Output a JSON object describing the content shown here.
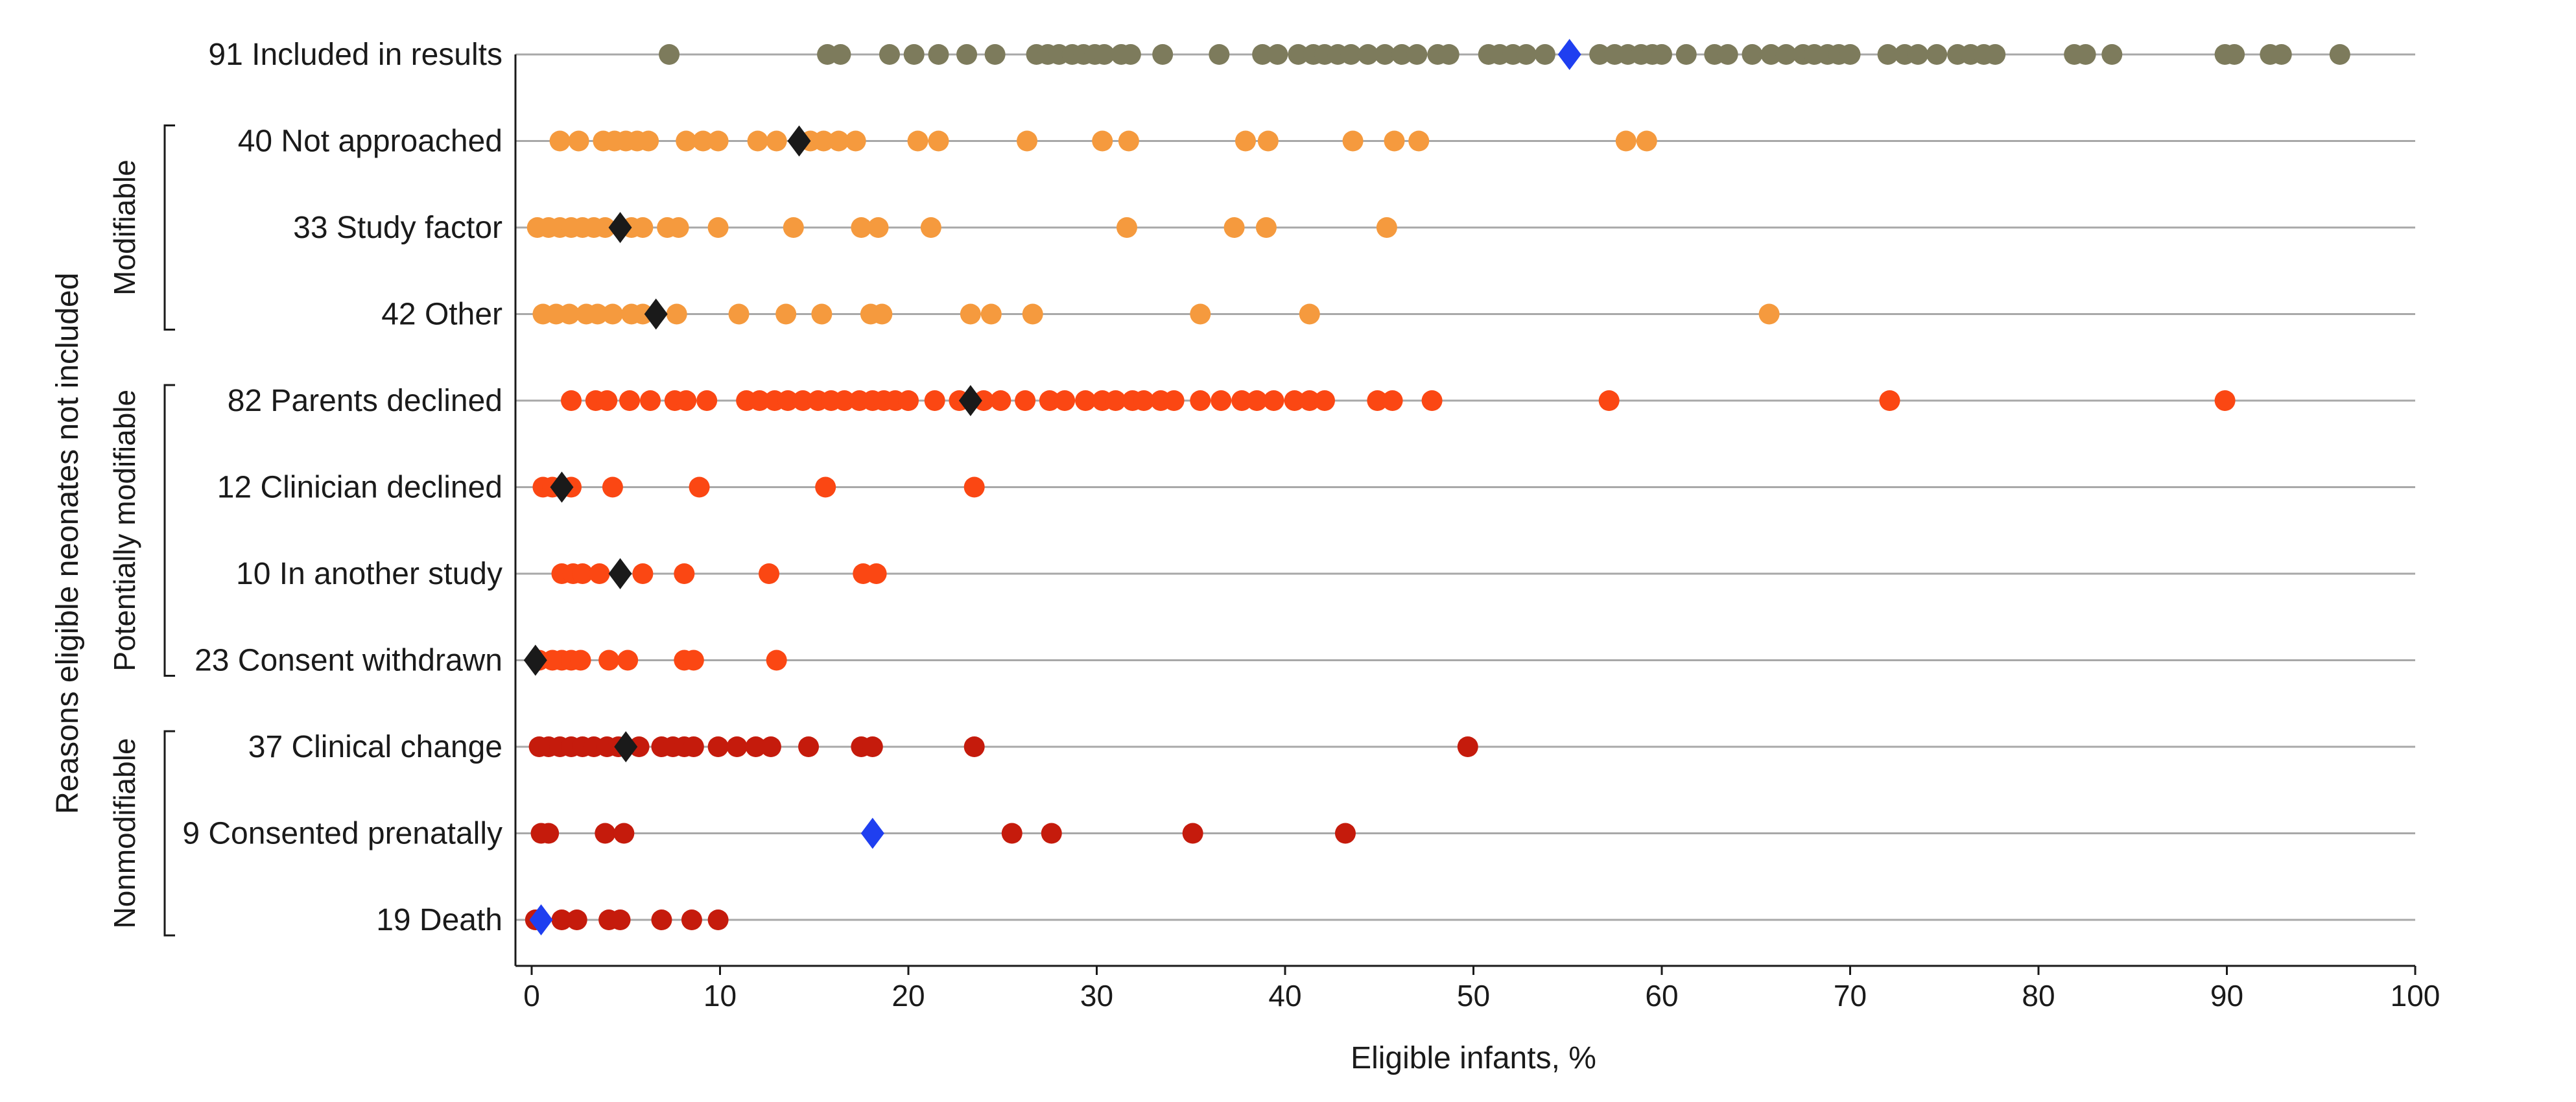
{
  "chart_data": {
    "type": "scatter",
    "xlabel": "Eligible infants, %",
    "ylabel": "Reasons eligible neonates not included",
    "xlim": [
      0,
      100
    ],
    "x_ticks": [
      0,
      10,
      20,
      30,
      40,
      50,
      60,
      70,
      80,
      90,
      100
    ],
    "grid": true,
    "groups": [
      {
        "label": "Modifiable",
        "rows": [
          1,
          2,
          3
        ]
      },
      {
        "label": "Potentially modifiable",
        "rows": [
          4,
          5,
          6,
          7
        ]
      },
      {
        "label": "Nonmodifiable",
        "rows": [
          8,
          9,
          10
        ]
      }
    ],
    "rows": [
      {
        "label": "91 Included in results",
        "color": "#7d7b5c",
        "median": 55.1,
        "median_color": "#1f3ff0",
        "points": [
          7.3,
          15.7,
          16.4,
          19,
          20.3,
          21.6,
          23.1,
          24.6,
          26.8,
          27.4,
          28,
          28.7,
          29.3,
          29.9,
          30.4,
          31.3,
          31.8,
          33.5,
          36.5,
          38.8,
          39.6,
          40.7,
          41.5,
          42.1,
          42.8,
          43.5,
          44.4,
          45.3,
          46.2,
          47,
          48.1,
          48.7,
          50.8,
          51.4,
          52.1,
          52.8,
          53.8,
          56.7,
          57.5,
          58.2,
          58.9,
          59.5,
          60,
          61.3,
          62.8,
          63.5,
          64.8,
          65.8,
          66.6,
          67.5,
          68.1,
          68.8,
          69.4,
          70,
          72,
          72.9,
          73.6,
          74.6,
          75.7,
          76.4,
          77.1,
          77.7,
          81.9,
          82.5,
          83.9,
          89.9,
          90.4,
          92.3,
          92.9,
          96
        ],
        "marker_size": "small"
      },
      {
        "label": "40 Not approached",
        "color": "#f59a3e",
        "median": 14.2,
        "median_color": "#1a1a1a",
        "points": [
          1.5,
          2.5,
          3.8,
          4.4,
          5,
          5.6,
          6.2,
          8.2,
          9.1,
          9.9,
          12,
          13,
          14.8,
          15.5,
          16.3,
          17.2,
          20.5,
          21.6,
          26.3,
          30.3,
          31.7,
          37.9,
          39.1,
          43.6,
          45.8,
          47.1,
          58.1,
          59.2
        ],
        "marker_size": "small"
      },
      {
        "label": "33 Study factor",
        "color": "#f59a3e",
        "median": 4.7,
        "median_color": "#1a1a1a",
        "points": [
          0.3,
          0.9,
          1.5,
          2.1,
          2.7,
          3.3,
          3.9,
          5.3,
          5.9,
          7.2,
          7.8,
          9.9,
          13.9,
          17.5,
          18.4,
          21.2,
          31.6,
          37.3,
          39,
          45.4
        ],
        "marker_size": "small"
      },
      {
        "label": "42 Other",
        "color": "#f59a3e",
        "median": 6.6,
        "median_color": "#1a1a1a",
        "points": [
          0.6,
          1.3,
          2,
          2.9,
          3.5,
          4.3,
          5.3,
          5.9,
          7.7,
          11,
          13.5,
          15.4,
          18,
          18.6,
          23.3,
          24.4,
          26.6,
          35.5,
          41.3,
          65.7
        ],
        "marker_size": "small"
      },
      {
        "label": "82 Parents declined",
        "color": "#fb4713",
        "median": 23.3,
        "median_color": "#1a1a1a",
        "points": [
          2.1,
          3.4,
          4,
          5.2,
          6.3,
          7.6,
          8.2,
          9.3,
          11.4,
          12.1,
          12.9,
          13.6,
          14.4,
          15.2,
          15.9,
          16.6,
          17.4,
          18.1,
          18.7,
          19.3,
          20,
          21.4,
          22.7,
          24,
          24.9,
          26.2,
          27.5,
          28.3,
          29.4,
          30.3,
          31,
          31.9,
          32.5,
          33.4,
          34.1,
          35.5,
          36.6,
          37.7,
          38.5,
          39.4,
          40.5,
          41.3,
          42.1,
          44.9,
          45.7,
          47.8,
          57.2,
          72.1,
          89.9
        ],
        "marker_size": "small"
      },
      {
        "label": "12 Clinician declined",
        "color": "#fb4713",
        "median": 1.6,
        "median_color": "#1a1a1a",
        "points": [
          0.6,
          1.1,
          2.1,
          4.3,
          8.9,
          15.6,
          23.5
        ],
        "marker_size": "small"
      },
      {
        "label": "10 In another study",
        "color": "#fb4713",
        "median": 4.7,
        "median_color": "#1a1a1a",
        "points": [
          1.6,
          2.2,
          2.7,
          3.6,
          5.9,
          8.1,
          12.6,
          17.6,
          18.3
        ],
        "marker_size": "small"
      },
      {
        "label": "23 Consent withdrawn",
        "color": "#fb4713",
        "median": 0.2,
        "median_color": "#1a1a1a",
        "points": [
          0.4,
          1.1,
          1.6,
          2.1,
          2.6,
          4.1,
          5.1,
          8.1,
          8.6,
          13
        ],
        "marker_size": "small"
      },
      {
        "label": "37 Clinical change",
        "color": "#c51b0c",
        "median": 5,
        "median_color": "#1a1a1a",
        "points": [
          0.4,
          0.9,
          1.5,
          2.1,
          2.7,
          3.3,
          4,
          4.6,
          5.7,
          6.9,
          7.5,
          8.1,
          8.6,
          9.9,
          10.9,
          11.9,
          12.7,
          14.7,
          17.5,
          18.1,
          23.5,
          49.7
        ],
        "marker_size": "small"
      },
      {
        "label": "9 Consented prenatally",
        "color": "#c51b0c",
        "median": 18.1,
        "median_color": "#1f3ff0",
        "points": [
          0.5,
          0.9,
          3.9,
          4.9,
          25.5,
          27.6,
          35.1,
          43.2
        ],
        "marker_size": "small"
      },
      {
        "label": "19 Death",
        "color": "#c51b0c",
        "median": 0.5,
        "median_color": "#1f3ff0",
        "points": [
          0.2,
          1.6,
          2.4,
          4.1,
          4.7,
          6.9,
          8.5,
          9.9
        ],
        "marker_size": "small"
      }
    ]
  }
}
